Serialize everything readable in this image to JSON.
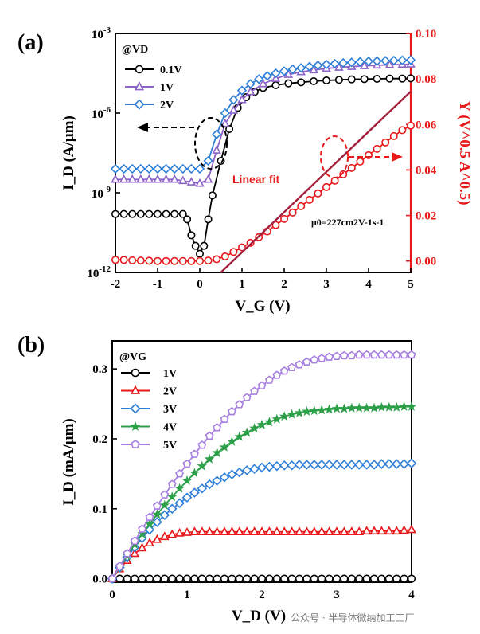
{
  "colors": {
    "black": "#000000",
    "purple": "#8d63c8",
    "blue": "#2f7fd6",
    "red": "#e8191b",
    "green": "#2ca048",
    "violet": "#a77fe0",
    "fitline": "#a3203d"
  },
  "watermark": "公众号 · 半导体微纳加工工厂",
  "chart_data": [
    {
      "panel": "(a)",
      "type": "scatter",
      "title": "",
      "xlabel": "V_G (V)",
      "ylabel_left": "I_D (A/μm)",
      "ylabel_right": "Y (V^0.5 A^0.5)",
      "xlim": [
        -2,
        5
      ],
      "ylim_left_log10": [
        -12,
        -3
      ],
      "ylim_right": [
        -0.005,
        0.1
      ],
      "x_ticks": [
        "-2",
        "-1",
        "0",
        "1",
        "2",
        "3",
        "4",
        "5"
      ],
      "y_ticks_left": [
        "10-3",
        "10-6",
        "10-9",
        "10-12"
      ],
      "y_ticks_right": [
        "0.00",
        "0.02",
        "0.04",
        "0.06",
        "0.08",
        "0.10"
      ],
      "legend_title": "@VD",
      "legend": [
        "0.1V",
        "1V",
        "2V"
      ],
      "annotation_fit": "Linear fit",
      "annotation_mu": "μ0=227cm2V-1s-1",
      "series": [
        {
          "name": "0.1V",
          "marker": "circle",
          "color": "#000000",
          "axis": "left",
          "x": [
            -2,
            -1.8,
            -1.6,
            -1.4,
            -1.2,
            -1,
            -0.8,
            -0.6,
            -0.4,
            -0.3,
            -0.2,
            -0.1,
            0,
            0.1,
            0.2,
            0.3,
            0.5,
            0.7,
            0.9,
            1.1,
            1.3,
            1.5,
            1.8,
            2.1,
            2.4,
            2.7,
            3,
            3.3,
            3.6,
            3.9,
            4.2,
            4.5,
            4.8,
            5
          ],
          "log10": [
            -9.8,
            -9.8,
            -9.8,
            -9.8,
            -9.8,
            -9.8,
            -9.8,
            -9.8,
            -9.8,
            -10,
            -10.6,
            -11,
            -11.3,
            -11,
            -10,
            -9.1,
            -7.8,
            -6.6,
            -5.8,
            -5.4,
            -5.2,
            -5.05,
            -4.95,
            -4.88,
            -4.84,
            -4.8,
            -4.77,
            -4.75,
            -4.73,
            -4.72,
            -4.71,
            -4.7,
            -4.7,
            -4.69
          ]
        },
        {
          "name": "1V",
          "marker": "triangle",
          "color": "#8d63c8",
          "axis": "left",
          "x": [
            -2,
            -1.8,
            -1.6,
            -1.4,
            -1.2,
            -1,
            -0.8,
            -0.6,
            -0.4,
            -0.2,
            0,
            0.2,
            0.4,
            0.6,
            0.8,
            1.0,
            1.2,
            1.5,
            1.8,
            2.1,
            2.4,
            2.7,
            3,
            3.3,
            3.6,
            3.9,
            4.2,
            4.5,
            4.8,
            5
          ],
          "log10": [
            -8.5,
            -8.5,
            -8.5,
            -8.5,
            -8.5,
            -8.5,
            -8.5,
            -8.5,
            -8.55,
            -8.6,
            -8.65,
            -8.5,
            -7.4,
            -6.4,
            -5.9,
            -5.5,
            -5.2,
            -4.9,
            -4.7,
            -4.55,
            -4.45,
            -4.38,
            -4.32,
            -4.28,
            -4.25,
            -4.22,
            -4.2,
            -4.18,
            -4.17,
            -4.16
          ]
        },
        {
          "name": "2V",
          "marker": "diamond",
          "color": "#2f7fd6",
          "axis": "left",
          "x": [
            -2,
            -1.8,
            -1.6,
            -1.4,
            -1.2,
            -1,
            -0.8,
            -0.6,
            -0.4,
            -0.2,
            0,
            0.2,
            0.4,
            0.6,
            0.8,
            1.0,
            1.2,
            1.4,
            1.6,
            1.8,
            2.0,
            2.2,
            2.4,
            2.6,
            2.8,
            3.0,
            3.2,
            3.4,
            3.6,
            3.8,
            4.0,
            4.2,
            4.4,
            4.6,
            4.8,
            5
          ],
          "log10": [
            -8.1,
            -8.1,
            -8.1,
            -8.1,
            -8.1,
            -8.1,
            -8.1,
            -8.1,
            -8.1,
            -8.1,
            -8.1,
            -7.8,
            -6.8,
            -6.0,
            -5.5,
            -5.15,
            -4.9,
            -4.72,
            -4.6,
            -4.5,
            -4.42,
            -4.35,
            -4.3,
            -4.25,
            -4.2,
            -4.17,
            -4.14,
            -4.11,
            -4.09,
            -4.07,
            -4.05,
            -4.04,
            -4.03,
            -4.02,
            -4.01,
            -4.0
          ]
        },
        {
          "name": "Y",
          "marker": "circle",
          "color": "#e8191b",
          "axis": "right",
          "x": [
            -2,
            -1.8,
            -1.6,
            -1.4,
            -1.2,
            -1,
            -0.8,
            -0.6,
            -0.4,
            -0.2,
            0,
            0.2,
            0.4,
            0.6,
            0.8,
            1.0,
            1.2,
            1.4,
            1.6,
            1.8,
            2.0,
            2.2,
            2.4,
            2.6,
            2.8,
            3.0,
            3.2,
            3.4,
            3.6,
            3.8,
            4.0,
            4.2,
            4.4,
            4.6,
            4.8,
            5
          ],
          "values": [
            0.0005,
            0.0005,
            0.0003,
            0.0002,
            0.0001,
            0.0,
            0.0,
            0.0,
            0.0,
            0.0,
            0.0,
            0.0002,
            0.0008,
            0.002,
            0.004,
            0.006,
            0.008,
            0.0105,
            0.013,
            0.0158,
            0.0185,
            0.0213,
            0.0241,
            0.0269,
            0.0297,
            0.0325,
            0.0353,
            0.0381,
            0.0409,
            0.0437,
            0.0465,
            0.0493,
            0.0521,
            0.0549,
            0.0575,
            0.0595
          ]
        },
        {
          "name": "Linear fit",
          "type": "line",
          "color": "#a3203d",
          "axis": "right",
          "x": [
            0.5,
            5
          ],
          "values": [
            -0.005,
            0.0745
          ]
        }
      ]
    },
    {
      "panel": "(b)",
      "type": "line",
      "title": "",
      "xlabel": "V_D (V)",
      "ylabel": "I_D (mA/μm)",
      "xlim": [
        0,
        4
      ],
      "ylim": [
        -0.005,
        0.34
      ],
      "x_ticks": [
        "0",
        "1",
        "2",
        "3",
        "4"
      ],
      "y_ticks": [
        "0.0",
        "0.1",
        "0.2",
        "0.3"
      ],
      "legend_title": "@VG",
      "legend": [
        "1V",
        "2V",
        "3V",
        "4V",
        "5V"
      ],
      "x": [
        0,
        0.1,
        0.2,
        0.3,
        0.4,
        0.5,
        0.6,
        0.7,
        0.8,
        0.9,
        1.0,
        1.1,
        1.2,
        1.3,
        1.4,
        1.5,
        1.6,
        1.7,
        1.8,
        1.9,
        2.0,
        2.1,
        2.2,
        2.3,
        2.4,
        2.5,
        2.6,
        2.7,
        2.8,
        2.9,
        3.0,
        3.1,
        3.2,
        3.3,
        3.4,
        3.5,
        3.6,
        3.7,
        3.8,
        3.9,
        4.0
      ],
      "series": [
        {
          "name": "1V",
          "marker": "circle",
          "color": "#000000",
          "values": [
            0,
            0,
            0,
            0,
            0,
            0,
            0,
            0,
            0,
            0,
            0,
            0,
            0,
            0,
            0,
            0,
            0,
            0,
            0,
            0,
            0,
            0,
            0,
            0,
            0,
            0,
            0,
            0,
            0,
            0,
            0,
            0,
            0,
            0,
            0,
            0,
            0,
            0,
            0,
            0,
            0
          ]
        },
        {
          "name": "2V",
          "marker": "triangle",
          "color": "#e8191b",
          "values": [
            0,
            0.014,
            0.026,
            0.036,
            0.044,
            0.051,
            0.056,
            0.06,
            0.063,
            0.065,
            0.066,
            0.067,
            0.067,
            0.067,
            0.067,
            0.067,
            0.067,
            0.067,
            0.067,
            0.067,
            0.067,
            0.067,
            0.067,
            0.067,
            0.067,
            0.067,
            0.067,
            0.067,
            0.067,
            0.067,
            0.067,
            0.067,
            0.067,
            0.067,
            0.068,
            0.068,
            0.068,
            0.068,
            0.068,
            0.069,
            0.07
          ]
        },
        {
          "name": "3V",
          "marker": "diamond",
          "color": "#2f7fd6",
          "values": [
            0,
            0.016,
            0.031,
            0.045,
            0.058,
            0.07,
            0.081,
            0.091,
            0.1,
            0.108,
            0.116,
            0.123,
            0.129,
            0.135,
            0.14,
            0.145,
            0.149,
            0.152,
            0.155,
            0.157,
            0.159,
            0.16,
            0.161,
            0.162,
            0.162,
            0.163,
            0.163,
            0.163,
            0.163,
            0.163,
            0.163,
            0.163,
            0.163,
            0.163,
            0.163,
            0.163,
            0.164,
            0.164,
            0.164,
            0.164,
            0.165
          ]
        },
        {
          "name": "4V",
          "marker": "star",
          "color": "#2ca048",
          "values": [
            0,
            0.017,
            0.033,
            0.049,
            0.064,
            0.078,
            0.092,
            0.105,
            0.117,
            0.129,
            0.14,
            0.151,
            0.161,
            0.171,
            0.18,
            0.188,
            0.196,
            0.203,
            0.209,
            0.215,
            0.22,
            0.224,
            0.228,
            0.232,
            0.235,
            0.237,
            0.239,
            0.24,
            0.241,
            0.242,
            0.243,
            0.243,
            0.244,
            0.244,
            0.244,
            0.244,
            0.245,
            0.245,
            0.245,
            0.246,
            0.246
          ]
        },
        {
          "name": "5V",
          "marker": "pentagon",
          "color": "#a77fe0",
          "values": [
            0,
            0.018,
            0.036,
            0.054,
            0.071,
            0.088,
            0.104,
            0.12,
            0.135,
            0.15,
            0.164,
            0.178,
            0.191,
            0.204,
            0.216,
            0.228,
            0.239,
            0.249,
            0.259,
            0.268,
            0.276,
            0.284,
            0.291,
            0.297,
            0.302,
            0.306,
            0.31,
            0.313,
            0.315,
            0.317,
            0.318,
            0.319,
            0.319,
            0.32,
            0.32,
            0.32,
            0.32,
            0.32,
            0.32,
            0.32,
            0.32
          ]
        }
      ]
    }
  ]
}
